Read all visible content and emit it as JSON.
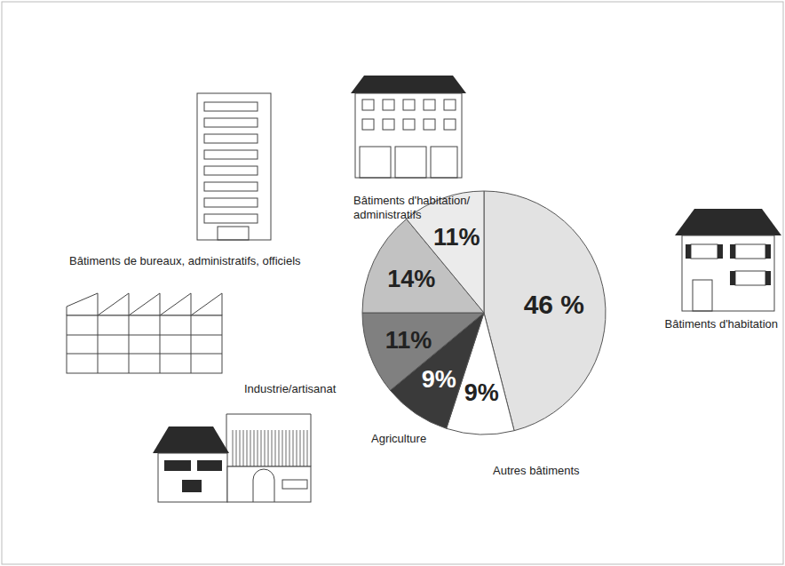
{
  "chart_data": {
    "type": "pie",
    "categories": [
      "Bâtiments d'habitation",
      "Autres bâtiments",
      "Agriculture",
      "Industrie/artisanat",
      "Bâtiments de bureaux, administratifs, officiels",
      "Bâtiments d'habitation/administratifs"
    ],
    "values": [
      46,
      9,
      9,
      11,
      14,
      11
    ],
    "value_labels": [
      "46 %",
      "9%",
      "9%",
      "11%",
      "14%",
      "11%"
    ],
    "colors": [
      "#e2e2e2",
      "#ffffff",
      "#3a3a3a",
      "#808080",
      "#c2c2c2",
      "#ebebeb"
    ],
    "data_labels": true
  }
}
